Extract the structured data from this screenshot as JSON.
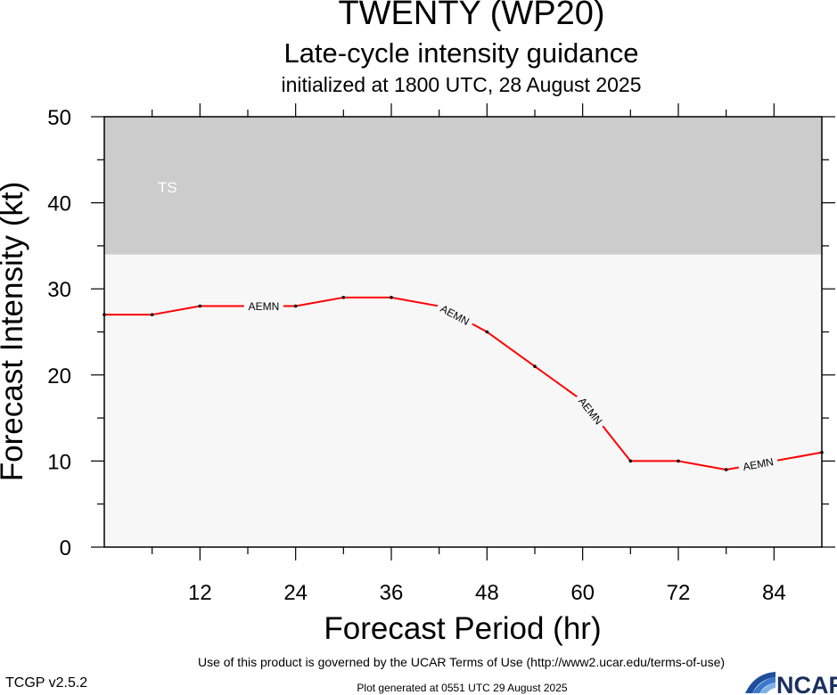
{
  "title": "TWENTY (WP20)",
  "subtitle": "Late-cycle intensity guidance",
  "init_text": "initialized at 1800 UTC, 28 August 2025",
  "footer": {
    "terms": "Use of this product is governed by the UCAR Terms of Use (http://www2.ucar.edu/terms-of-use)",
    "generated": "Plot generated at 0551 UTC   29 August 2025",
    "version": "TCGP v2.5.2",
    "logo_text": "NCAR"
  },
  "chart_data": {
    "type": "line",
    "title": "TWENTY (WP20)",
    "xlabel": "Forecast Period (hr)",
    "ylabel": "Forecast Intensity (kt)",
    "xlim": [
      0,
      90
    ],
    "ylim": [
      0,
      50
    ],
    "xticks": [
      12,
      24,
      36,
      48,
      60,
      72,
      84
    ],
    "yticks": [
      0,
      10,
      20,
      30,
      40,
      50
    ],
    "x_minor_step": 6,
    "y_minor_step": 5,
    "bands": [
      {
        "label": "TS",
        "from": 34,
        "to": 50,
        "color": "#cccccc"
      }
    ],
    "below_band_color": "#f7f7f7",
    "series": [
      {
        "name": "AEMN",
        "color": "#ff0000",
        "x": [
          0,
          6,
          12,
          18,
          24,
          30,
          36,
          42,
          48,
          54,
          60,
          66,
          72,
          78,
          84,
          90
        ],
        "values": [
          27,
          27,
          28,
          28,
          28,
          29,
          29,
          28,
          25,
          21,
          17,
          10,
          10,
          9,
          10,
          11
        ],
        "label_positions": [
          20,
          44,
          61,
          82
        ]
      }
    ]
  }
}
